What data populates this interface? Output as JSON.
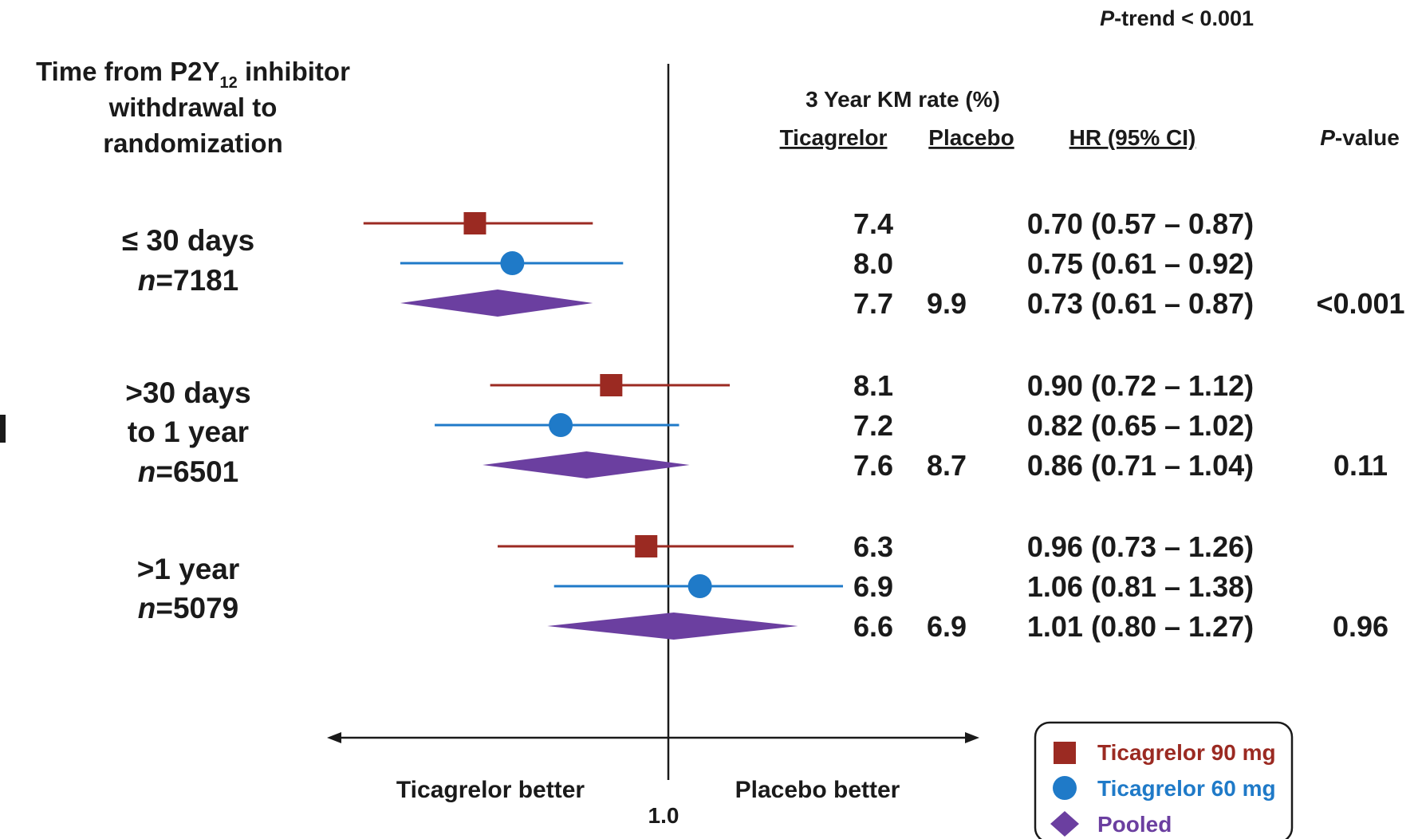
{
  "p_trend": {
    "prefix": "P",
    "suffix": "-trend < 0.001"
  },
  "left_header": {
    "line1_a": "Time from P2Y",
    "line1_sub": "12",
    "line1_b": " inhibitor",
    "line2": "withdrawal to",
    "line3": "randomization"
  },
  "table_headers": {
    "km_rate": "3 Year KM  rate (%)",
    "ticagrelor": "Ticagrelor",
    "placebo": "Placebo",
    "hr": "HR (95% CI)",
    "p_value_prefix": "P",
    "p_value_suffix": "-value"
  },
  "groups": [
    {
      "label_lines": [
        "≤ 30 days"
      ],
      "n_prefix": "n",
      "n_value": "=7181"
    },
    {
      "label_lines": [
        ">30 days",
        "to 1 year"
      ],
      "n_prefix": "n",
      "n_value": "=6501"
    },
    {
      "label_lines": [
        ">1 year"
      ],
      "n_prefix": "n",
      "n_value": "=5079"
    }
  ],
  "axis": {
    "ref_label": "1.0",
    "left_label": "Ticagrelor better",
    "right_label": "Placebo better"
  },
  "legend": [
    {
      "label": "Ticagrelor 90 mg",
      "shape": "square",
      "color": "#9b2a22"
    },
    {
      "label": "Ticagrelor 60 mg",
      "shape": "circle",
      "color": "#1f7ac8"
    },
    {
      "label": "Pooled",
      "shape": "diamond",
      "color": "#6b3fa0"
    }
  ],
  "colors": {
    "t90": "#9b2a22",
    "t60": "#1f7ac8",
    "pooled": "#6b3fa0",
    "ink": "#1a1a1a"
  },
  "chart_data": {
    "type": "forest",
    "reference_value": 1.0,
    "series": [
      {
        "name": "Ticagrelor 90 mg"
      },
      {
        "name": "Ticagrelor 60 mg"
      },
      {
        "name": "Pooled"
      }
    ],
    "rows": [
      {
        "group": 0,
        "series": 0,
        "tica_rate": "7.4",
        "placebo_rate": "",
        "hr_text": "0.70 (0.57 – 0.87)",
        "p": "",
        "hr": 0.7,
        "lo": 0.57,
        "hi": 0.87
      },
      {
        "group": 0,
        "series": 1,
        "tica_rate": "8.0",
        "placebo_rate": "",
        "hr_text": "0.75 (0.61 – 0.92)",
        "p": "",
        "hr": 0.75,
        "lo": 0.61,
        "hi": 0.92
      },
      {
        "group": 0,
        "series": 2,
        "tica_rate": "7.7",
        "placebo_rate": "9.9",
        "hr_text": "0.73 (0.61 – 0.87)",
        "p": "<0.001",
        "hr": 0.73,
        "lo": 0.61,
        "hi": 0.87
      },
      {
        "group": 1,
        "series": 0,
        "tica_rate": "8.1",
        "placebo_rate": "",
        "hr_text": "0.90 (0.72 – 1.12)",
        "p": "",
        "hr": 0.9,
        "lo": 0.72,
        "hi": 1.12
      },
      {
        "group": 1,
        "series": 1,
        "tica_rate": "7.2",
        "placebo_rate": "",
        "hr_text": "0.82 (0.65 – 1.02)",
        "p": "",
        "hr": 0.82,
        "lo": 0.65,
        "hi": 1.02
      },
      {
        "group": 1,
        "series": 2,
        "tica_rate": "7.6",
        "placebo_rate": "8.7",
        "hr_text": "0.86 (0.71 – 1.04)",
        "p": "0.11",
        "hr": 0.86,
        "lo": 0.71,
        "hi": 1.04
      },
      {
        "group": 2,
        "series": 0,
        "tica_rate": "6.3",
        "placebo_rate": "",
        "hr_text": "0.96 (0.73 – 1.26)",
        "p": "",
        "hr": 0.96,
        "lo": 0.73,
        "hi": 1.26
      },
      {
        "group": 2,
        "series": 1,
        "tica_rate": "6.9",
        "placebo_rate": "",
        "hr_text": "1.06 (0.81 – 1.38)",
        "p": "",
        "hr": 1.06,
        "lo": 0.81,
        "hi": 1.38
      },
      {
        "group": 2,
        "series": 2,
        "tica_rate": "6.6",
        "placebo_rate": "6.9",
        "hr_text": "1.01 (0.80 – 1.27)",
        "p": "0.96",
        "hr": 1.01,
        "lo": 0.8,
        "hi": 1.27
      }
    ]
  }
}
